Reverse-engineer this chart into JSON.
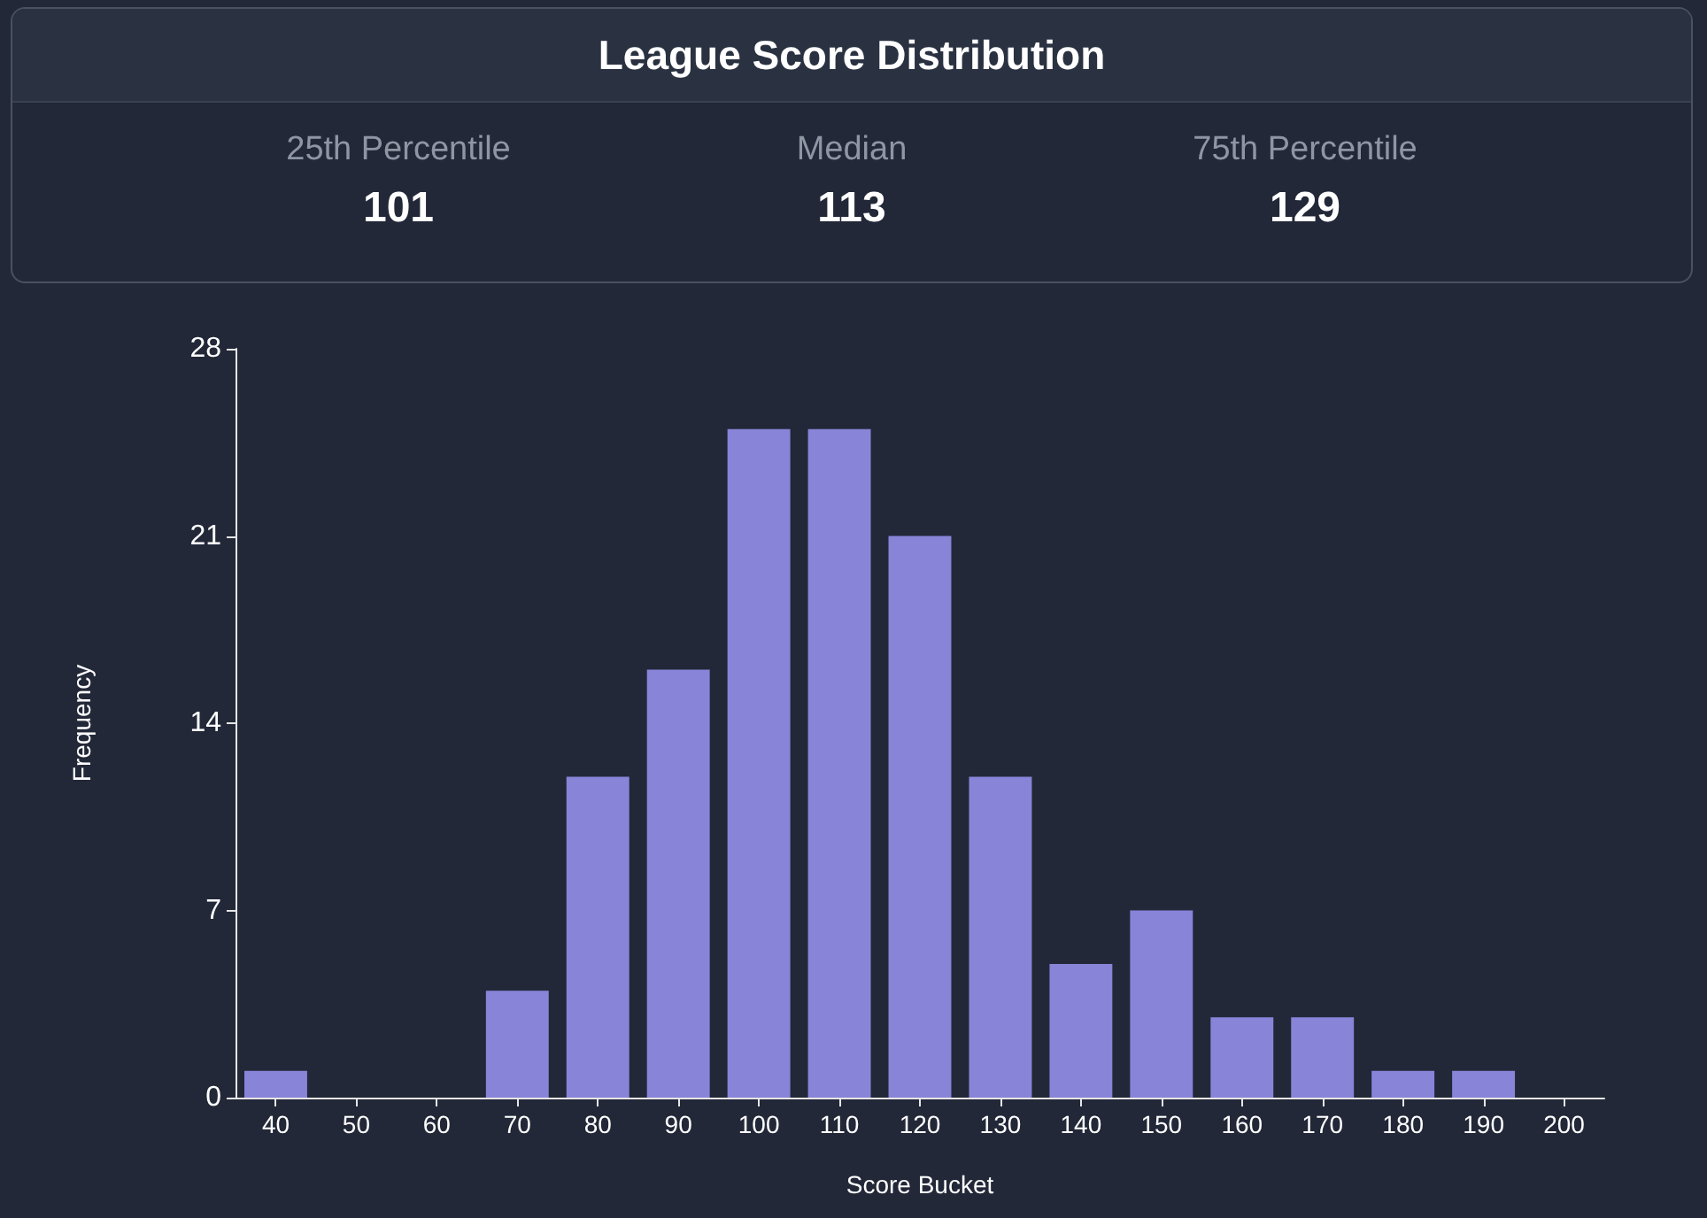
{
  "chart_data": {
    "type": "bar",
    "title": "League Score Distribution",
    "annotations": [
      "25th Percentile",
      "101",
      "Median",
      "113",
      "75th Percentile",
      "129"
    ],
    "xlabel": "Score Bucket",
    "ylabel": "Frequency",
    "categories": [
      "40",
      "50",
      "60",
      "70",
      "80",
      "90",
      "100",
      "110",
      "120",
      "130",
      "140",
      "150",
      "160",
      "170",
      "180",
      "190",
      "200"
    ],
    "values": [
      1,
      0,
      0,
      4,
      12,
      16,
      25,
      25,
      21,
      12,
      5,
      7,
      3,
      3,
      1,
      1,
      0
    ],
    "color": "#8884d8",
    "ylim": [
      0,
      28
    ],
    "yticks": [
      0,
      7,
      14,
      21,
      28
    ],
    "grid": false
  }
}
